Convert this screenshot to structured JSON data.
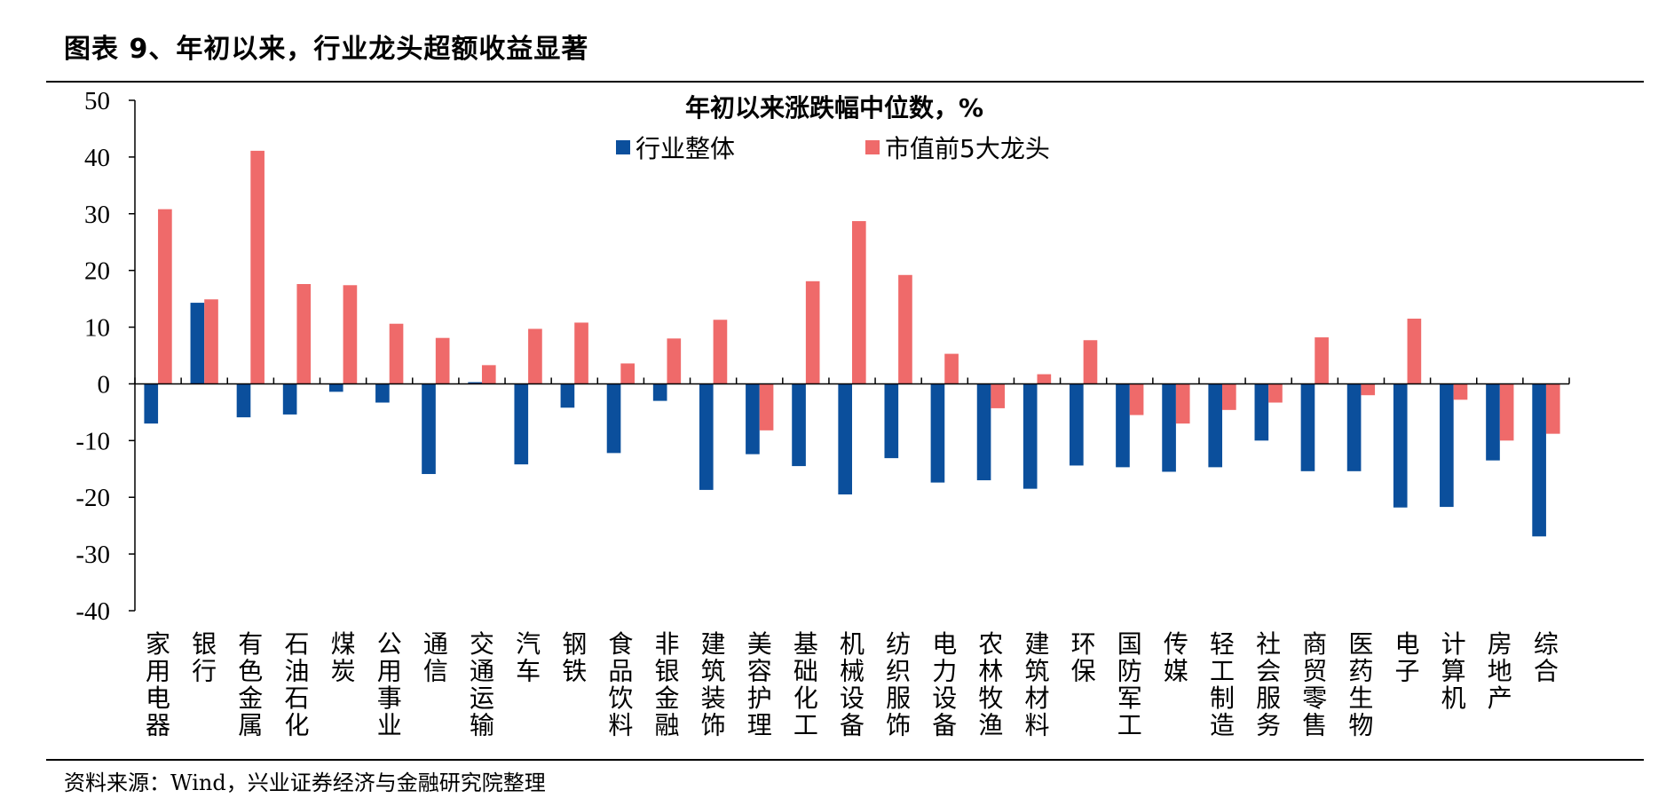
{
  "figure": {
    "title": "图表 9、年初以来，行业龙头超额收益显著",
    "source": "资料来源：Wind，兴业证券经济与金融研究院整理"
  },
  "colors": {
    "series1": "#0B4F9C",
    "series2": "#EF6A6A",
    "axis": "#000000"
  },
  "chart_data": {
    "type": "bar",
    "title": "年初以来涨跌幅中位数，%",
    "xlabel": "",
    "ylabel": "",
    "ylim": [
      -40,
      50
    ],
    "yticks": [
      "50",
      "40",
      "30",
      "20",
      "10",
      "0",
      "-10",
      "-20",
      "-30",
      "-40"
    ],
    "grid": false,
    "legend_position": "top-center",
    "categories": [
      "家用电器",
      "银行",
      "有色金属",
      "石油石化",
      "煤炭",
      "公用事业",
      "通信",
      "交通运输",
      "汽车",
      "钢铁",
      "食品饮料",
      "非银金融",
      "建筑装饰",
      "美容护理",
      "基础化工",
      "机械设备",
      "纺织服饰",
      "电力设备",
      "农林牧渔",
      "建筑材料",
      "环保",
      "国防军工",
      "传媒",
      "轻工制造",
      "社会服务",
      "商贸零售",
      "医药生物",
      "电子",
      "计算机",
      "房地产",
      "综合"
    ],
    "series": [
      {
        "name": "行业整体",
        "values": [
          -7.0,
          14.3,
          -5.9,
          -5.4,
          -1.4,
          -3.3,
          -15.9,
          0.3,
          -14.2,
          -4.2,
          -12.2,
          -3.0,
          -18.7,
          -12.4,
          -14.5,
          -19.5,
          -13.1,
          -17.4,
          -17.0,
          -18.5,
          -14.4,
          -14.7,
          -15.5,
          -14.7,
          -10.0,
          -15.4,
          -15.4,
          -21.8,
          -21.7,
          -13.5,
          -26.9
        ]
      },
      {
        "name": "市值前5大龙头",
        "values": [
          30.8,
          14.9,
          41.1,
          17.6,
          17.4,
          10.6,
          8.1,
          3.3,
          9.7,
          10.8,
          3.6,
          8.0,
          11.3,
          -8.2,
          18.1,
          28.7,
          19.2,
          5.3,
          -4.3,
          1.7,
          7.7,
          -5.5,
          -7.0,
          -4.6,
          -3.3,
          8.2,
          -2.0,
          11.5,
          -2.8,
          -10.0,
          -8.8
        ]
      }
    ]
  }
}
